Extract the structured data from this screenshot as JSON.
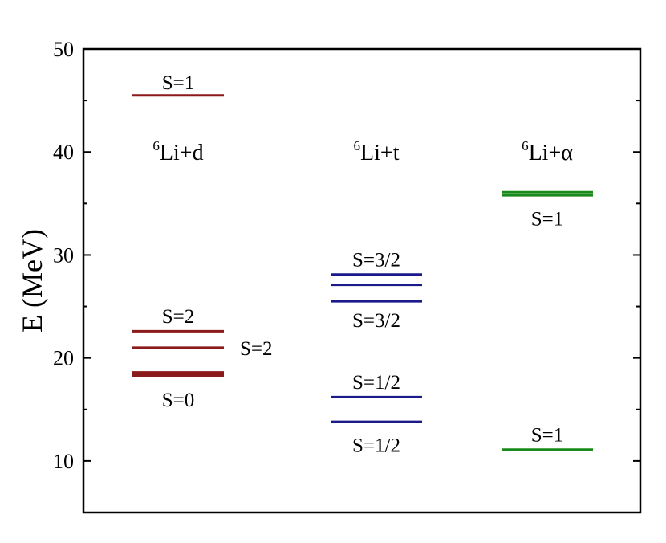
{
  "chart_data": {
    "type": "level-diagram",
    "ylabel": "E (MeV)",
    "ylim": [
      5,
      50
    ],
    "yticks": [
      10,
      20,
      30,
      40,
      50
    ],
    "columns": [
      {
        "label_sup": "6",
        "label_main": "Li+d",
        "color": "#8B1A1A",
        "levels": [
          45.5,
          22.6,
          21.0,
          18.6,
          18.3
        ],
        "annotations": [
          {
            "text": "S=1",
            "y": 46.8,
            "side": "center"
          },
          {
            "text": "S=2",
            "y": 24.1,
            "side": "center"
          },
          {
            "text": "S=2",
            "y": 21.0,
            "side": "right"
          },
          {
            "text": "S=0",
            "y": 16.0,
            "side": "center"
          }
        ]
      },
      {
        "label_sup": "6",
        "label_main": "Li+t",
        "color": "#1A1A8B",
        "levels": [
          28.1,
          27.1,
          25.5,
          16.2,
          13.8
        ],
        "annotations": [
          {
            "text": "S=3/2",
            "y": 29.6,
            "side": "center"
          },
          {
            "text": "S=3/2",
            "y": 23.7,
            "side": "center"
          },
          {
            "text": "S=1/2",
            "y": 17.7,
            "side": "center"
          },
          {
            "text": "S=1/2",
            "y": 11.6,
            "side": "center"
          }
        ]
      },
      {
        "label_sup": "6",
        "label_main": "Li+α",
        "color": "#1A8B1A",
        "levels": [
          36.1,
          35.8,
          11.1
        ],
        "annotations": [
          {
            "text": "S=1",
            "y": 33.6,
            "side": "center"
          },
          {
            "text": "S=1",
            "y": 12.6,
            "side": "center"
          }
        ]
      }
    ]
  }
}
